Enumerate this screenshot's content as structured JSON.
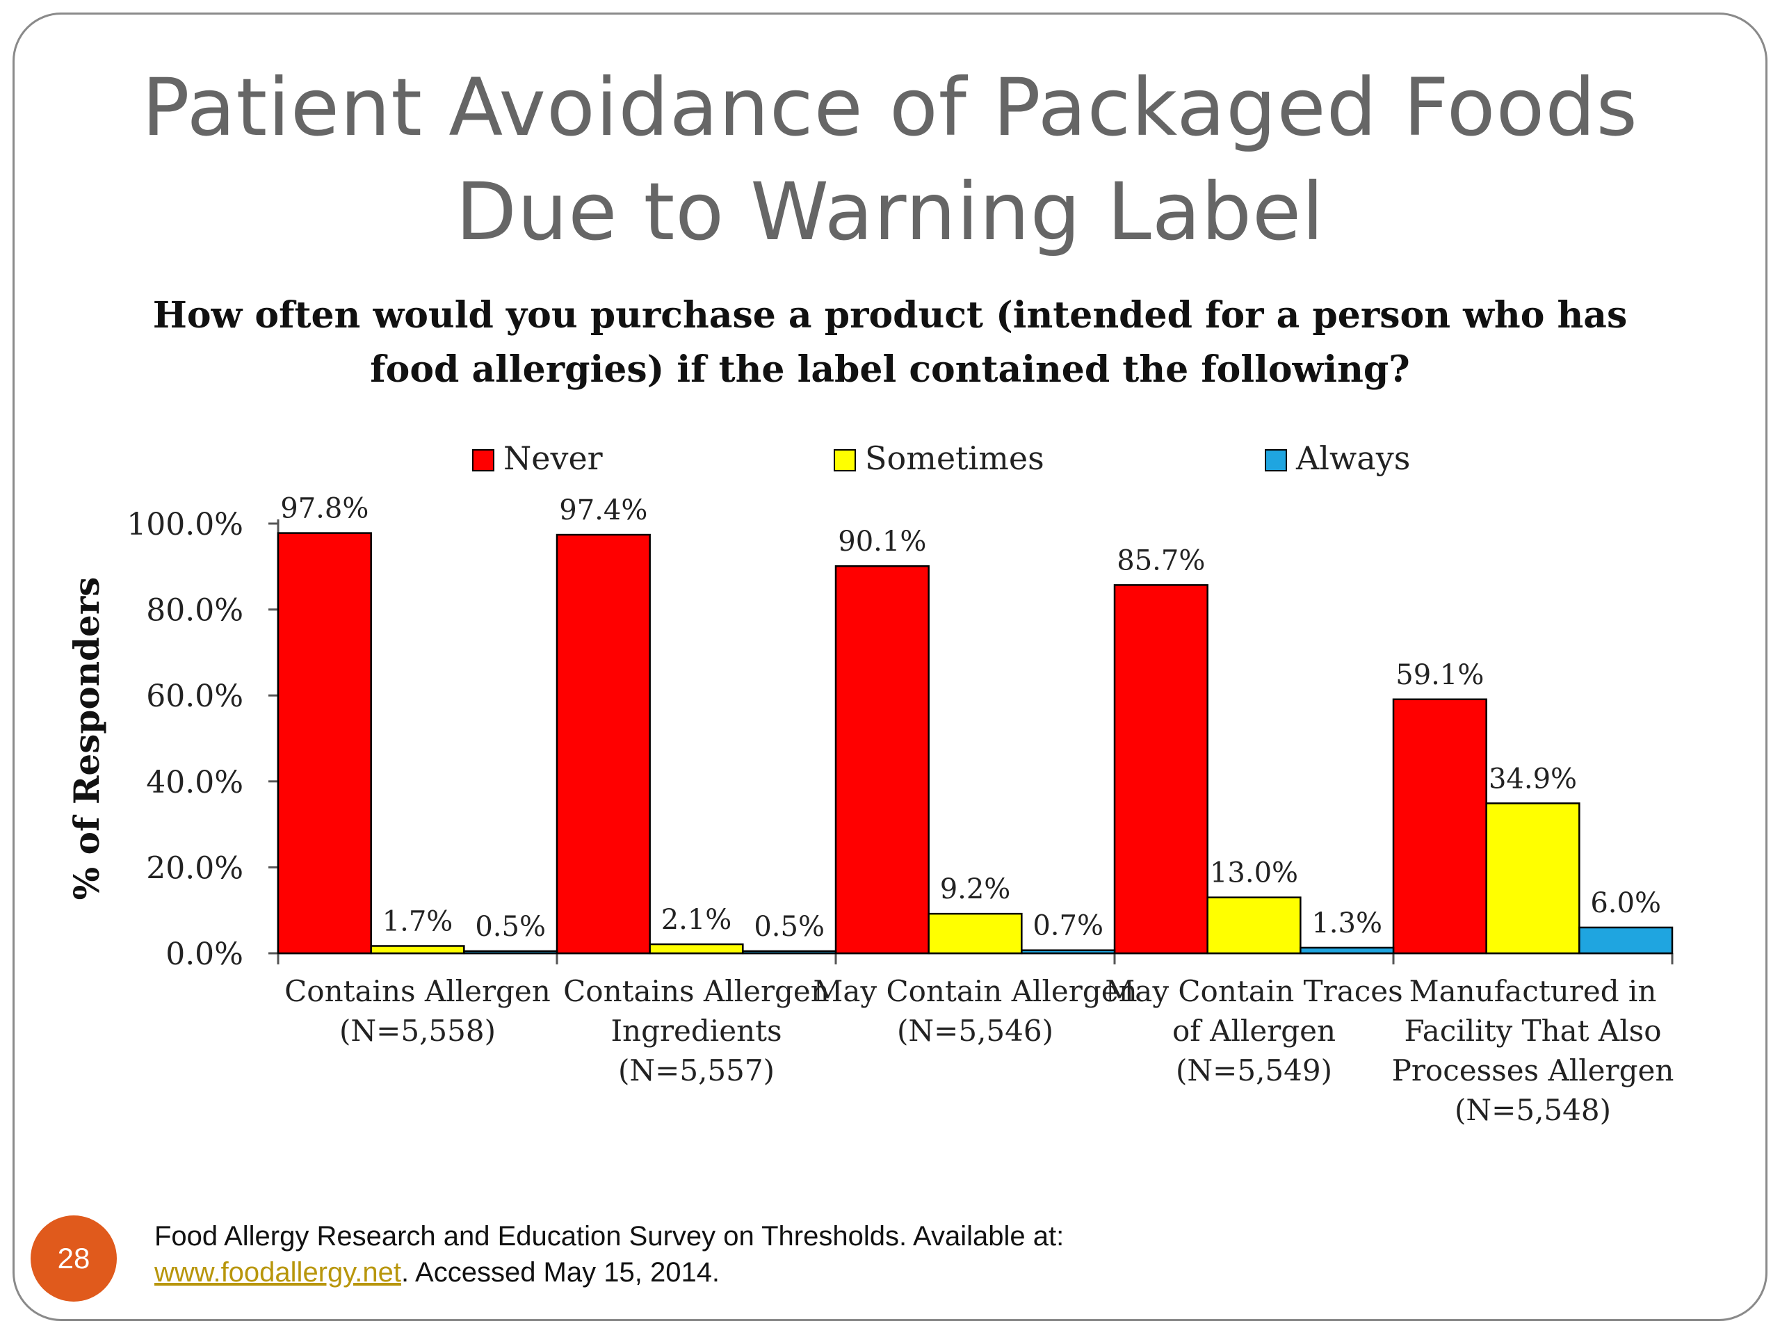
{
  "slide": {
    "title_line1": "Patient Avoidance of Packaged Foods",
    "title_line2": "Due to Warning Label",
    "question": "How often would you purchase a product (intended for a person who has food allergies) if the label contained the following?",
    "page_number": "28",
    "source_prefix": "Food Allergy Research and Education Survey on Thresholds. Available at: ",
    "source_link": "www.foodallergy.net",
    "source_suffix": ". Accessed May 15, 2014.",
    "link_color": "#b8960c",
    "badge_color": "#e05a1c"
  },
  "chart_data": {
    "type": "bar",
    "title": "",
    "ylabel": "% of Responders",
    "xlabel": "",
    "ylim": [
      0,
      100
    ],
    "yticks": [
      "0.0%",
      "20.0%",
      "40.0%",
      "60.0%",
      "80.0%",
      "100.0%"
    ],
    "ytick_values": [
      0,
      20,
      40,
      60,
      80,
      100
    ],
    "legend_position": "top",
    "categories": [
      [
        "Contains Allergen",
        "(N=5,558)"
      ],
      [
        "Contains Allergen",
        "Ingredients",
        "(N=5,557)"
      ],
      [
        "May Contain Allergen",
        "(N=5,546)"
      ],
      [
        "May Contain Traces",
        "of Allergen",
        "(N=5,549)"
      ],
      [
        "Manufactured in",
        "Facility That Also",
        "Processes Allergen",
        "(N=5,548)"
      ]
    ],
    "series": [
      {
        "name": "Never",
        "color": "#ff0000",
        "values": [
          97.8,
          97.4,
          90.1,
          85.7,
          59.1
        ],
        "labels": [
          "97.8%",
          "97.4%",
          "90.1%",
          "85.7%",
          "59.1%"
        ]
      },
      {
        "name": "Sometimes",
        "color": "#ffff00",
        "values": [
          1.7,
          2.1,
          9.2,
          13.0,
          34.9
        ],
        "labels": [
          "1.7%",
          "2.1%",
          "9.2%",
          "13.0%",
          "34.9%"
        ]
      },
      {
        "name": "Always",
        "color": "#1fa5e0",
        "values": [
          0.5,
          0.5,
          0.7,
          1.3,
          6.0
        ],
        "labels": [
          "0.5%",
          "0.5%",
          "0.7%",
          "1.3%",
          "6.0%"
        ]
      }
    ]
  }
}
